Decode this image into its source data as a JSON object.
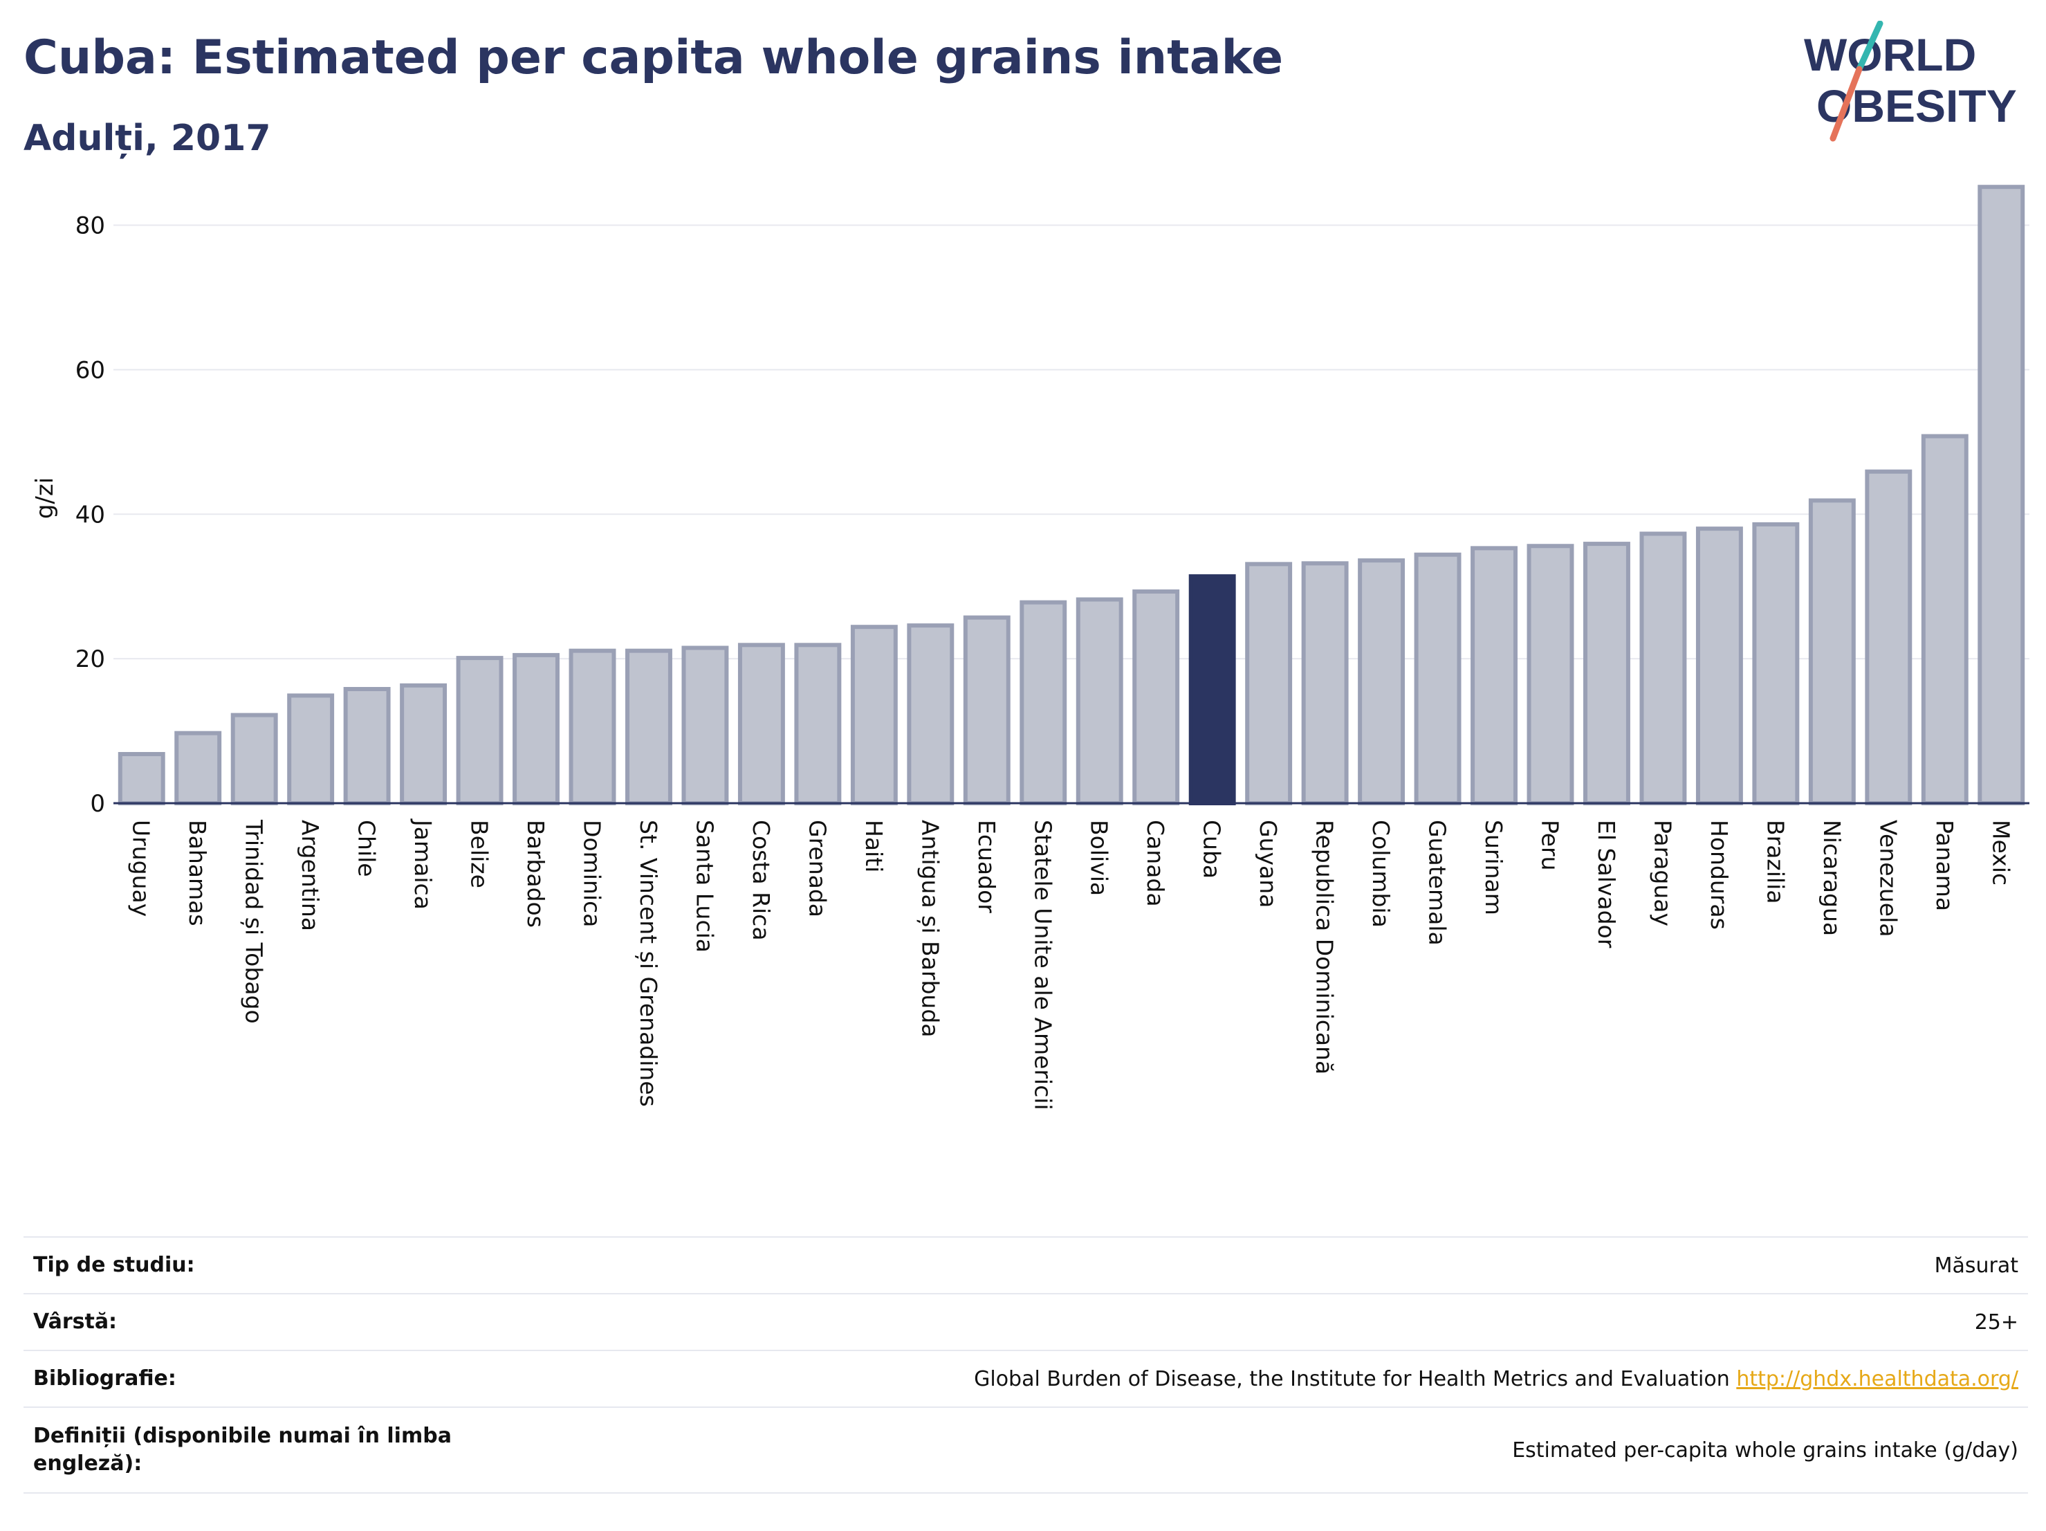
{
  "header": {
    "title": "Cuba: Estimated per capita whole grains intake",
    "subtitle": "Adulți, 2017"
  },
  "logo": {
    "line1": "WORLD",
    "line2": "OBESITY"
  },
  "colors": {
    "bar": "#bfc3cf",
    "bar_stroke": "#9aa0b5",
    "highlight": "#2b3561",
    "title": "#2b3561",
    "grid": "#e8e9ef",
    "link": "#e6a817"
  },
  "chart_data": {
    "type": "bar",
    "ylabel": "g/zi",
    "ylim": [
      0,
      88
    ],
    "yticks": [
      0,
      20,
      40,
      60,
      80
    ],
    "grid": true,
    "highlight": "Cuba",
    "categories": [
      "Uruguay",
      "Bahamas",
      "Trinidad și Tobago",
      "Argentina",
      "Chile",
      "Jamaica",
      "Belize",
      "Barbados",
      "Dominica",
      "St. Vincent și Grenadines",
      "Santa Lucia",
      "Costa Rica",
      "Grenada",
      "Haiti",
      "Antigua și Barbuda",
      "Ecuador",
      "Statele Unite ale Americii",
      "Bolivia",
      "Canada",
      "Cuba",
      "Guyana",
      "Republica Dominicană",
      "Columbia",
      "Guatemala",
      "Surinam",
      "Peru",
      "El Salvador",
      "Paraguay",
      "Honduras",
      "Brazilia",
      "Nicaragua",
      "Venezuela",
      "Panama",
      "Mexic"
    ],
    "values": [
      6.8,
      9.7,
      12.2,
      14.9,
      15.8,
      16.3,
      20.1,
      20.5,
      21.1,
      21.1,
      21.5,
      21.9,
      21.9,
      24.4,
      24.6,
      25.7,
      27.8,
      28.2,
      29.3,
      31.4,
      33.1,
      33.2,
      33.6,
      34.4,
      35.3,
      35.6,
      35.9,
      37.3,
      38.0,
      38.6,
      41.9,
      45.9,
      50.8,
      85.3
    ]
  },
  "meta": {
    "rows": [
      {
        "key": "Tip de studiu:",
        "value": "Măsurat"
      },
      {
        "key": "Vârstă:",
        "value": "25+"
      },
      {
        "key": "Bibliografie:",
        "value": "Global Burden of Disease, the Institute for Health Metrics and Evaluation",
        "link": "http://ghdx.healthdata.org/"
      },
      {
        "key": "Definiții (disponibile numai în limba engleză):",
        "value": "Estimated per-capita whole grains intake (g/day)"
      }
    ]
  }
}
